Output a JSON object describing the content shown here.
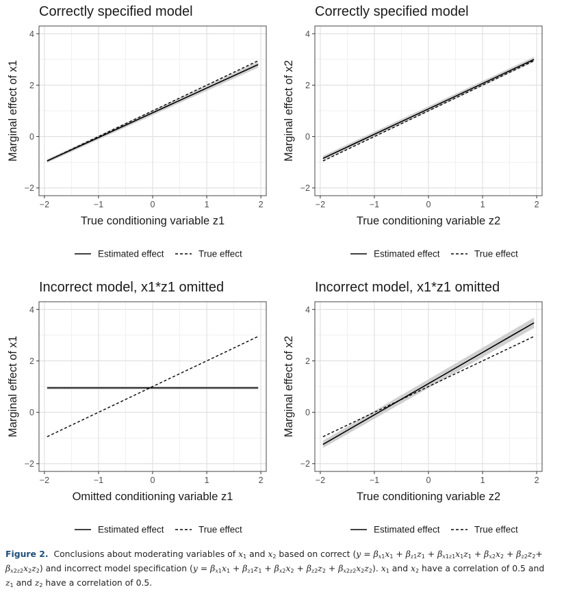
{
  "chart_data": [
    {
      "type": "line",
      "title": "Correctly specified model",
      "xlabel": "True conditioning variable z1",
      "ylabel": "Marginal effect of x1",
      "xlim": [
        -2.1,
        2.1
      ],
      "ylim": [
        -2.3,
        4.3
      ],
      "xticks": [
        "-2",
        "-1",
        "0",
        "1",
        "2"
      ],
      "yticks": [
        "-2",
        "0",
        "2",
        "4"
      ],
      "grid": true,
      "legend": "bottom",
      "series": [
        {
          "name": "Estimated effect",
          "style": "solid",
          "x": [
            -1.95,
            1.95
          ],
          "y": [
            -0.95,
            2.8
          ],
          "ci": [
            0.07,
            0.12
          ]
        },
        {
          "name": "True effect",
          "style": "dashed",
          "x": [
            -1.95,
            1.95
          ],
          "y": [
            -0.95,
            2.95
          ]
        }
      ]
    },
    {
      "type": "line",
      "title": "Correctly specified model",
      "xlabel": "True conditioning variable z2",
      "ylabel": "Marginal effect of x2",
      "xlim": [
        -2.1,
        2.1
      ],
      "ylim": [
        -2.3,
        4.3
      ],
      "xticks": [
        "-2",
        "-1",
        "0",
        "1",
        "2"
      ],
      "yticks": [
        "-2",
        "0",
        "2",
        "4"
      ],
      "grid": true,
      "legend": "bottom",
      "series": [
        {
          "name": "Estimated effect",
          "style": "solid",
          "x": [
            -1.95,
            1.95
          ],
          "y": [
            -0.85,
            3.0
          ],
          "ci": [
            0.1,
            0.1
          ]
        },
        {
          "name": "True effect",
          "style": "dashed",
          "x": [
            -1.95,
            1.95
          ],
          "y": [
            -0.95,
            2.95
          ]
        }
      ]
    },
    {
      "type": "line",
      "title": "Incorrect model, x1*z1 omitted",
      "xlabel": "Omitted conditioning variable z1",
      "ylabel": "Marginal effect of x1",
      "xlim": [
        -2.1,
        2.1
      ],
      "ylim": [
        -2.3,
        4.3
      ],
      "xticks": [
        "-2",
        "-1",
        "0",
        "1",
        "2"
      ],
      "yticks": [
        "-2",
        "0",
        "2",
        "4"
      ],
      "grid": true,
      "legend": "bottom",
      "series": [
        {
          "name": "Estimated effect",
          "style": "solid",
          "x": [
            -1.95,
            1.95
          ],
          "y": [
            0.95,
            0.95
          ],
          "ci": [
            0.06,
            0.06
          ]
        },
        {
          "name": "True effect",
          "style": "dashed",
          "x": [
            -1.95,
            1.95
          ],
          "y": [
            -0.95,
            2.95
          ]
        }
      ]
    },
    {
      "type": "line",
      "title": "Incorrect model, x1*z1 omitted",
      "xlabel": "True conditioning variable z2",
      "ylabel": "Marginal effect of x2",
      "xlim": [
        -2.1,
        2.1
      ],
      "ylim": [
        -2.3,
        4.3
      ],
      "xticks": [
        "-2",
        "-1",
        "0",
        "1",
        "2"
      ],
      "yticks": [
        "-2",
        "0",
        "2",
        "4"
      ],
      "grid": true,
      "legend": "bottom",
      "series": [
        {
          "name": "Estimated effect",
          "style": "solid",
          "x": [
            -1.95,
            1.95
          ],
          "y": [
            -1.25,
            3.48
          ],
          "ci": [
            0.14,
            0.2
          ]
        },
        {
          "name": "True effect",
          "style": "dashed",
          "x": [
            -1.95,
            1.95
          ],
          "y": [
            -0.95,
            2.95
          ]
        }
      ]
    }
  ],
  "colors": {
    "line": "#000000",
    "ribbon": "#c8c8c8",
    "grid": "#e6e6e6",
    "panel_border": "#444444",
    "caption_label": "#1f4e79"
  },
  "caption": {
    "label": "Figure 2.",
    "line1_text": "Conclusions about moderating variables of x1 and x2 based on correct (y = βx1x1 + βz1z1 + βx1z1x1z1 + βx2x2 + βz2z2+",
    "line2_text": "βx2z2x2z2) and incorrect model specification (y = βx1x1 + βz1z1 + βx2x2 + βz2z2 + βx2z2x2z2). x1 and x2 have a correlation of 0.5 and",
    "line3_text": "z1 and z2 have a correlation of 0.5."
  }
}
